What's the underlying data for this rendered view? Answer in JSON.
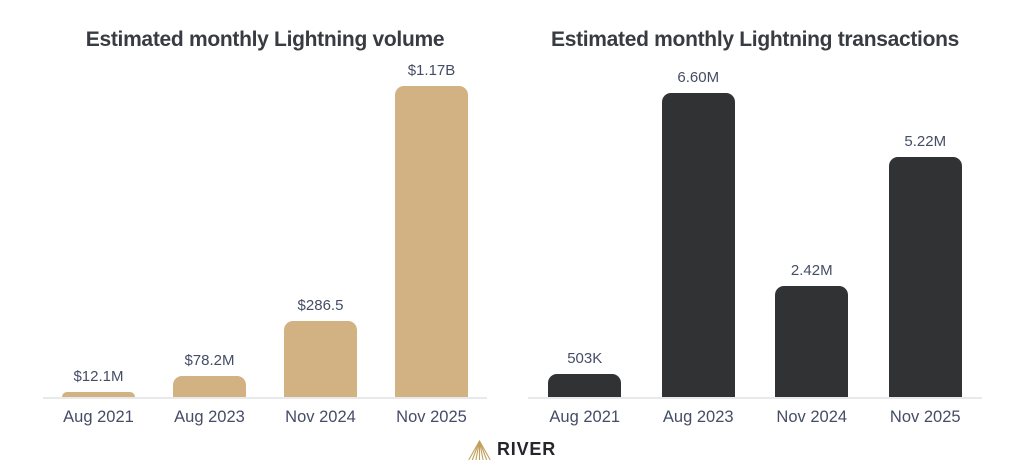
{
  "chart_data": [
    {
      "type": "bar",
      "title": "Estimated monthly Lightning volume",
      "categories": [
        "Aug 2021",
        "Aug 2023",
        "Nov 2024",
        "Nov 2025"
      ],
      "values": [
        12.1,
        78.2,
        286.5,
        1170
      ],
      "value_labels": [
        "$12.1M",
        "$78.2M",
        "$286.5",
        "$1.17B"
      ],
      "bar_color": "#d2b183",
      "ylim": [
        0,
        1170
      ],
      "grid": false,
      "legend": false
    },
    {
      "type": "bar",
      "title": "Estimated monthly Lightning transactions",
      "categories": [
        "Aug 2021",
        "Aug 2023",
        "Nov 2024",
        "Nov 2025"
      ],
      "values": [
        0.503,
        6.6,
        2.42,
        5.22
      ],
      "value_labels": [
        "503K",
        "6.60M",
        "2.42M",
        "5.22M"
      ],
      "bar_color": "#303234",
      "ylim": [
        0,
        6.6
      ],
      "grid": false,
      "legend": false
    }
  ],
  "footer": {
    "brand": "RIVER",
    "logo_color": "#c2a05c"
  },
  "colors": {
    "background": "#ffffff",
    "title_text": "#383b41",
    "label_text": "#454d66",
    "axis_line": "#e8e9eb",
    "gold_bar": "#d2b183",
    "dark_bar": "#303234"
  }
}
